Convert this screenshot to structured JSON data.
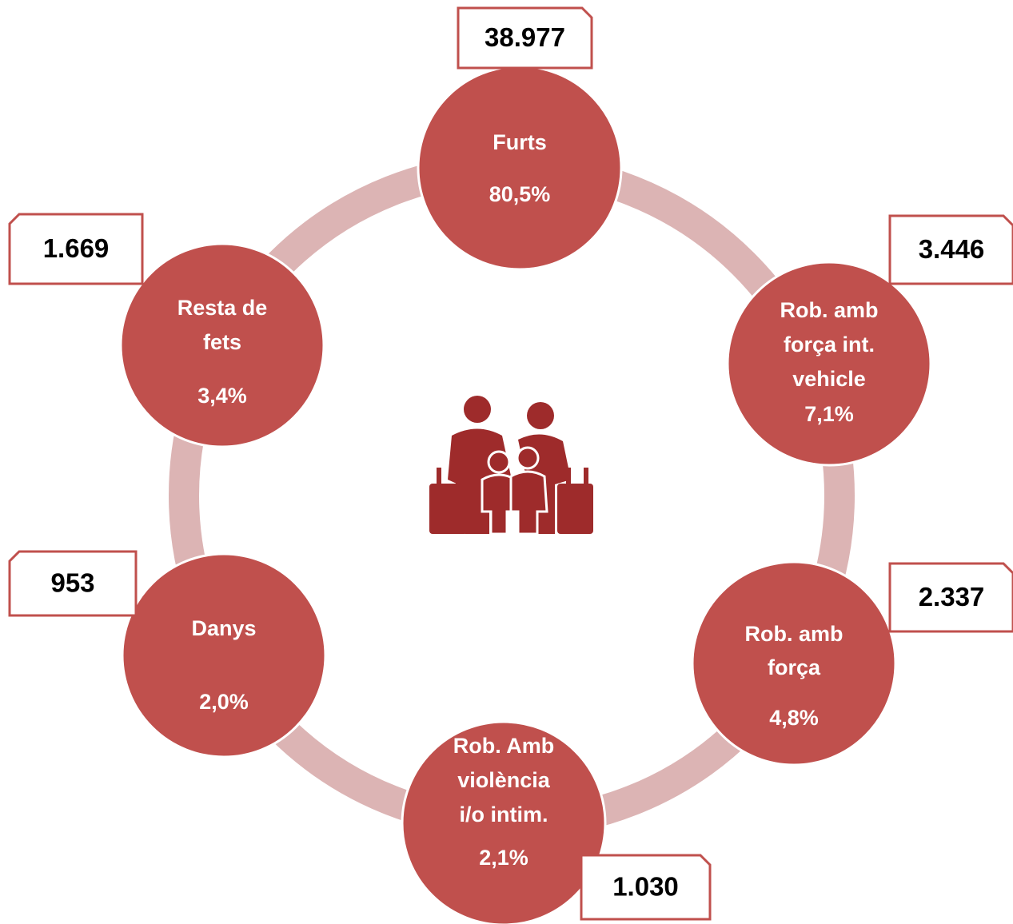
{
  "nodes": [
    {
      "label_lines": [
        "Furts"
      ],
      "percent": "80,5%",
      "count": "38.977"
    },
    {
      "label_lines": [
        "Rob. amb",
        "força int.",
        "vehicle"
      ],
      "percent": "7,1%",
      "count": "3.446"
    },
    {
      "label_lines": [
        "Rob. amb",
        "força"
      ],
      "percent": "4,8%",
      "count": "2.337"
    },
    {
      "label_lines": [
        "Rob. Amb",
        "violència",
        "i/o intim."
      ],
      "percent": "2,1%",
      "count": "1.030"
    },
    {
      "label_lines": [
        "Danys"
      ],
      "percent": "2,0%",
      "count": "953"
    },
    {
      "label_lines": [
        "Resta de",
        "fets"
      ],
      "percent": "3,4%",
      "count": "1.669"
    }
  ]
}
